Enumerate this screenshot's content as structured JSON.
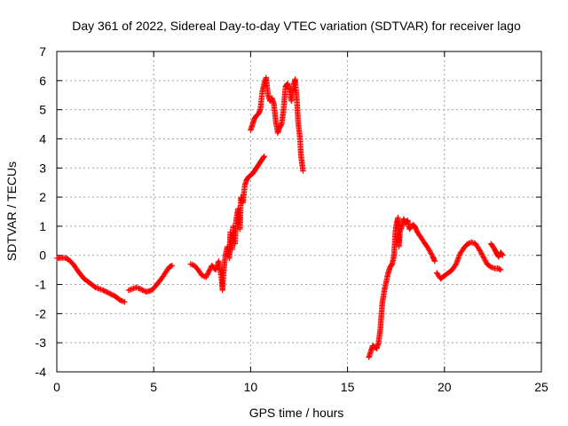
{
  "chart_data": {
    "type": "scatter",
    "title": "Day 361 of 2022, Sidereal Day-to-day VTEC variation (SDTVAR) for receiver lago",
    "xlabel": "GPS time / hours",
    "ylabel": "SDTVAR / TECUs",
    "xlim": [
      0,
      25
    ],
    "ylim": [
      -4,
      7
    ],
    "xticks": [
      0,
      5,
      10,
      15,
      20,
      25
    ],
    "yticks": [
      -4,
      -3,
      -2,
      -1,
      0,
      1,
      2,
      3,
      4,
      5,
      6,
      7
    ],
    "grid": true,
    "marker": "+",
    "series_color": "#ff0000",
    "series": [
      {
        "name": "SDTVAR",
        "segments": [
          [
            [
              0.0,
              -0.1
            ],
            [
              0.3,
              -0.08
            ],
            [
              0.5,
              -0.1
            ],
            [
              0.7,
              -0.2
            ],
            [
              0.9,
              -0.35
            ],
            [
              1.1,
              -0.55
            ],
            [
              1.4,
              -0.8
            ],
            [
              1.7,
              -0.95
            ],
            [
              2.0,
              -1.1
            ],
            [
              2.4,
              -1.2
            ],
            [
              2.7,
              -1.3
            ],
            [
              3.0,
              -1.4
            ],
            [
              3.3,
              -1.55
            ],
            [
              3.5,
              -1.6
            ]
          ],
          [
            [
              3.7,
              -1.2
            ],
            [
              3.9,
              -1.15
            ],
            [
              4.1,
              -1.1
            ],
            [
              4.3,
              -1.15
            ],
            [
              4.6,
              -1.25
            ],
            [
              4.9,
              -1.2
            ],
            [
              5.1,
              -1.05
            ],
            [
              5.4,
              -0.8
            ],
            [
              5.6,
              -0.6
            ],
            [
              5.8,
              -0.4
            ],
            [
              5.95,
              -0.35
            ]
          ],
          [
            [
              6.9,
              -0.3
            ],
            [
              7.1,
              -0.35
            ],
            [
              7.3,
              -0.5
            ],
            [
              7.5,
              -0.7
            ],
            [
              7.7,
              -0.75
            ],
            [
              7.85,
              -0.55
            ],
            [
              8.0,
              -0.35
            ],
            [
              8.2,
              -0.5
            ],
            [
              8.35,
              -0.2
            ],
            [
              8.5,
              -0.8
            ],
            [
              8.55,
              -1.2
            ],
            [
              8.6,
              -0.6
            ],
            [
              8.7,
              0.0
            ],
            [
              8.8,
              0.3
            ],
            [
              8.9,
              -0.1
            ],
            [
              8.95,
              0.8
            ],
            [
              9.05,
              0.2
            ],
            [
              9.1,
              1.0
            ],
            [
              9.2,
              0.4
            ],
            [
              9.25,
              1.2
            ],
            [
              9.35,
              1.6
            ],
            [
              9.45,
              0.9
            ],
            [
              9.5,
              2.0
            ],
            [
              9.6,
              1.8
            ],
            [
              9.7,
              2.4
            ],
            [
              9.8,
              2.6
            ],
            [
              9.9,
              2.7
            ],
            [
              10.0,
              2.75
            ],
            [
              10.1,
              2.8
            ],
            [
              10.2,
              2.9
            ],
            [
              10.3,
              3.0
            ],
            [
              10.4,
              3.1
            ],
            [
              10.5,
              3.2
            ],
            [
              10.6,
              3.3
            ],
            [
              10.7,
              3.4
            ]
          ],
          [
            [
              10.0,
              4.3
            ],
            [
              10.1,
              4.5
            ],
            [
              10.2,
              4.7
            ],
            [
              10.3,
              4.8
            ],
            [
              10.4,
              4.85
            ],
            [
              10.5,
              5.0
            ],
            [
              10.6,
              5.6
            ],
            [
              10.7,
              5.9
            ],
            [
              10.8,
              6.1
            ],
            [
              10.9,
              5.5
            ],
            [
              11.0,
              5.3
            ],
            [
              11.1,
              5.4
            ],
            [
              11.2,
              5.2
            ],
            [
              11.3,
              4.6
            ],
            [
              11.4,
              4.2
            ],
            [
              11.5,
              4.4
            ],
            [
              11.6,
              4.5
            ],
            [
              11.7,
              5.0
            ],
            [
              11.8,
              5.8
            ],
            [
              11.9,
              5.9
            ],
            [
              12.0,
              5.7
            ],
            [
              12.1,
              5.3
            ],
            [
              12.2,
              5.8
            ],
            [
              12.3,
              6.05
            ],
            [
              12.4,
              5.2
            ],
            [
              12.45,
              4.6
            ],
            [
              12.55,
              4.0
            ],
            [
              12.6,
              3.4
            ],
            [
              12.7,
              2.9
            ]
          ],
          [
            [
              16.1,
              -3.5
            ],
            [
              16.2,
              -3.3
            ],
            [
              16.3,
              -3.1
            ],
            [
              16.4,
              -3.15
            ],
            [
              16.5,
              -3.2
            ],
            [
              16.6,
              -3.0
            ],
            [
              16.7,
              -2.5
            ],
            [
              16.75,
              -2.0
            ],
            [
              16.8,
              -1.6
            ],
            [
              16.9,
              -1.2
            ],
            [
              17.0,
              -0.9
            ],
            [
              17.1,
              -0.6
            ],
            [
              17.2,
              -0.4
            ],
            [
              17.3,
              -0.3
            ],
            [
              17.4,
              0.0
            ],
            [
              17.45,
              0.6
            ],
            [
              17.5,
              1.0
            ],
            [
              17.6,
              1.3
            ],
            [
              17.65,
              0.3
            ],
            [
              17.7,
              0.8
            ],
            [
              17.8,
              1.0
            ],
            [
              17.9,
              1.25
            ],
            [
              18.0,
              1.1
            ],
            [
              18.1,
              1.2
            ],
            [
              18.2,
              0.9
            ],
            [
              18.3,
              1.0
            ],
            [
              18.4,
              1.05
            ],
            [
              18.5,
              0.95
            ],
            [
              18.6,
              0.8
            ],
            [
              18.8,
              0.6
            ],
            [
              19.0,
              0.4
            ],
            [
              19.2,
              0.2
            ],
            [
              19.4,
              -0.05
            ],
            [
              19.5,
              -0.2
            ]
          ],
          [
            [
              19.6,
              -0.6
            ],
            [
              19.8,
              -0.8
            ],
            [
              20.0,
              -0.7
            ],
            [
              20.2,
              -0.6
            ],
            [
              20.4,
              -0.5
            ],
            [
              20.6,
              -0.3
            ],
            [
              20.8,
              0.05
            ],
            [
              21.0,
              0.25
            ],
            [
              21.2,
              0.4
            ],
            [
              21.4,
              0.45
            ],
            [
              21.6,
              0.4
            ],
            [
              21.8,
              0.2
            ],
            [
              22.0,
              -0.05
            ],
            [
              22.2,
              -0.3
            ],
            [
              22.4,
              -0.4
            ],
            [
              22.6,
              -0.45
            ],
            [
              22.8,
              -0.45
            ],
            [
              22.9,
              -0.5
            ]
          ],
          [
            [
              22.4,
              0.4
            ],
            [
              22.5,
              0.3
            ],
            [
              22.6,
              0.2
            ],
            [
              22.7,
              0.05
            ],
            [
              22.8,
              -0.05
            ],
            [
              22.9,
              0.1
            ],
            [
              23.0,
              0.0
            ]
          ]
        ]
      }
    ]
  }
}
